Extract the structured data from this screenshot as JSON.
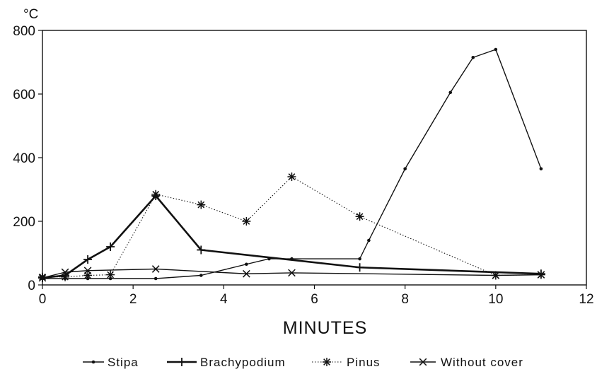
{
  "chart_data": {
    "type": "line",
    "title": "",
    "xlabel": "MINUTES",
    "ylabel": "°C",
    "xlim": [
      0,
      12
    ],
    "ylim": [
      0,
      800
    ],
    "xticks": [
      "0",
      "2",
      "4",
      "6",
      "8",
      "10",
      "12"
    ],
    "yticks": [
      "0",
      "200",
      "400",
      "600",
      "800"
    ],
    "grid": false,
    "legend": "bottom",
    "series": [
      {
        "name": "Stipa",
        "marker": "dot",
        "style": "solid-thin",
        "color": "#111111",
        "points": [
          [
            0,
            20
          ],
          [
            0.5,
            20
          ],
          [
            1,
            20
          ],
          [
            1.5,
            20
          ],
          [
            2.5,
            20
          ],
          [
            3.5,
            30
          ],
          [
            4.5,
            65
          ],
          [
            5,
            82
          ],
          [
            5.5,
            82
          ],
          [
            7,
            82
          ],
          [
            7.2,
            140
          ],
          [
            8,
            365
          ],
          [
            9,
            605
          ],
          [
            9.5,
            715
          ],
          [
            10,
            740
          ],
          [
            11,
            365
          ]
        ]
      },
      {
        "name": "Brachypodium",
        "marker": "plus",
        "style": "solid-thick",
        "color": "#111111",
        "points": [
          [
            0,
            22
          ],
          [
            0.5,
            30
          ],
          [
            1,
            80
          ],
          [
            1.5,
            120
          ],
          [
            2.5,
            280
          ],
          [
            3.5,
            110
          ],
          [
            7,
            55
          ],
          [
            11,
            35
          ]
        ]
      },
      {
        "name": "Pinus",
        "marker": "asterisk",
        "style": "dotted",
        "color": "#111111",
        "points": [
          [
            0,
            25
          ],
          [
            0.5,
            25
          ],
          [
            1,
            30
          ],
          [
            1.5,
            32
          ],
          [
            2.5,
            285
          ],
          [
            3.5,
            252
          ],
          [
            4.5,
            200
          ],
          [
            5.5,
            340
          ],
          [
            7,
            215
          ],
          [
            10,
            30
          ],
          [
            11,
            32
          ]
        ]
      },
      {
        "name": "Without cover",
        "marker": "x",
        "style": "solid-thin",
        "color": "#111111",
        "points": [
          [
            0,
            22
          ],
          [
            0.5,
            40
          ],
          [
            1,
            45
          ],
          [
            2.5,
            50
          ],
          [
            4.5,
            35
          ],
          [
            5.5,
            38
          ],
          [
            10,
            30
          ],
          [
            11,
            32
          ]
        ]
      }
    ]
  }
}
